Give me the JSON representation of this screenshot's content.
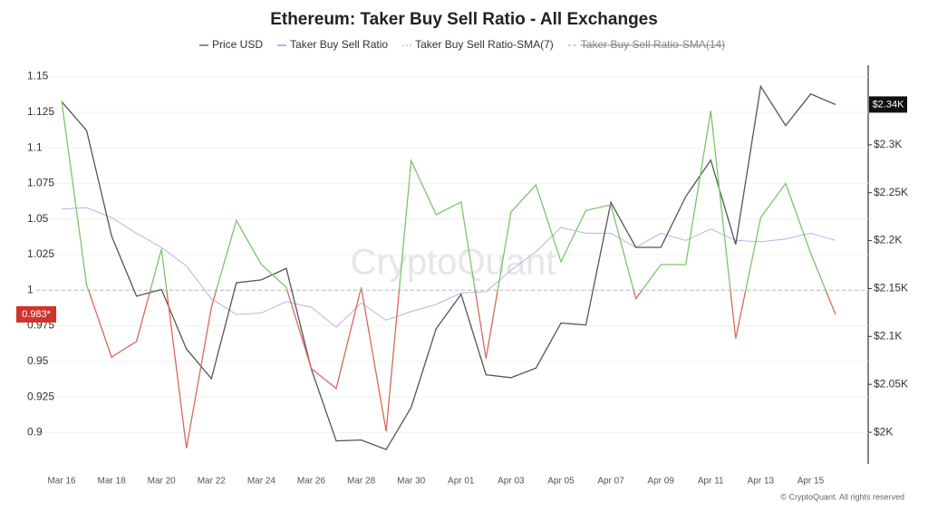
{
  "chart_data": {
    "type": "line",
    "title": "Ethereum: Taker Buy Sell Ratio - All Exchanges",
    "watermark": "CryptoQuant",
    "footer": "© CryptoQuant. All rights reserved",
    "categories": [
      "Mar 16",
      null,
      "Mar 18",
      null,
      "Mar 20",
      null,
      "Mar 22",
      null,
      "Mar 24",
      null,
      "Mar 26",
      null,
      "Mar 28",
      null,
      "Mar 30",
      null,
      "Apr 01",
      null,
      "Apr 03",
      null,
      "Apr 05",
      null,
      "Apr 07",
      null,
      "Apr 09",
      null,
      "Apr 11",
      null,
      "Apr 13",
      null,
      "Apr 15",
      null
    ],
    "series": [
      {
        "name": "Price USD",
        "color": "#555555",
        "axis": "y2",
        "last_label": "$2.34K",
        "values": [
          2345,
          2315,
          2205,
          2142,
          2149,
          2087,
          2056,
          2156,
          2159,
          2171,
          2066,
          1991,
          1992,
          1982,
          2026,
          2108,
          2144,
          2060,
          2057,
          2067,
          2114,
          2112,
          2240,
          2193,
          2193,
          2246,
          2284,
          2196,
          2361,
          2320,
          2353,
          2342
        ]
      },
      {
        "name": "Taker Buy Sell Ratio",
        "color": "#8f8ad8",
        "color_above": "#7cc46a",
        "color_below": "#d9685a",
        "last_label": "0.983*",
        "values": [
          1.133,
          1.004,
          0.953,
          0.964,
          1.029,
          0.889,
          0.988,
          1.049,
          1.018,
          1.002,
          0.945,
          0.931,
          1.002,
          0.901,
          1.091,
          1.053,
          1.062,
          0.952,
          1.055,
          1.074,
          1.02,
          1.056,
          1.06,
          0.994,
          1.018,
          1.018,
          1.126,
          0.966,
          1.051,
          1.075,
          1.026,
          0.983
        ]
      },
      {
        "name": "Taker Buy Sell Ratio-SMA(7)",
        "color": "#b7b3ea",
        "values": [
          1.057,
          1.058,
          1.051,
          1.04,
          1.03,
          1.017,
          0.994,
          0.983,
          0.984,
          0.992,
          0.988,
          0.974,
          0.991,
          0.979,
          0.985,
          0.99,
          0.998,
          0.999,
          1.014,
          1.027,
          1.044,
          1.04,
          1.04,
          1.03,
          1.04,
          1.035,
          1.043,
          1.035,
          1.034,
          1.036,
          1.04,
          1.035
        ]
      }
    ],
    "hidden_series": [
      {
        "name": "Taker Buy Sell Ratio-SMA(14)",
        "color": "#aaaaaa"
      }
    ],
    "baseline": 1,
    "ylim": [
      0.878,
      1.158
    ],
    "yticks": [
      0.9,
      0.925,
      0.95,
      0.975,
      1,
      1.025,
      1.05,
      1.075,
      1.1,
      1.125,
      1.15
    ],
    "y2lim": [
      1967,
      2383
    ],
    "y2ticks": [
      {
        "value": 2000,
        "label": "$2K"
      },
      {
        "value": 2050,
        "label": "$2.05K"
      },
      {
        "value": 2100,
        "label": "$2.1K"
      },
      {
        "value": 2150,
        "label": "$2.15K"
      },
      {
        "value": 2200,
        "label": "$2.2K"
      },
      {
        "value": 2250,
        "label": "$2.25K"
      },
      {
        "value": 2300,
        "label": "$2.3K"
      }
    ],
    "grid": true
  }
}
